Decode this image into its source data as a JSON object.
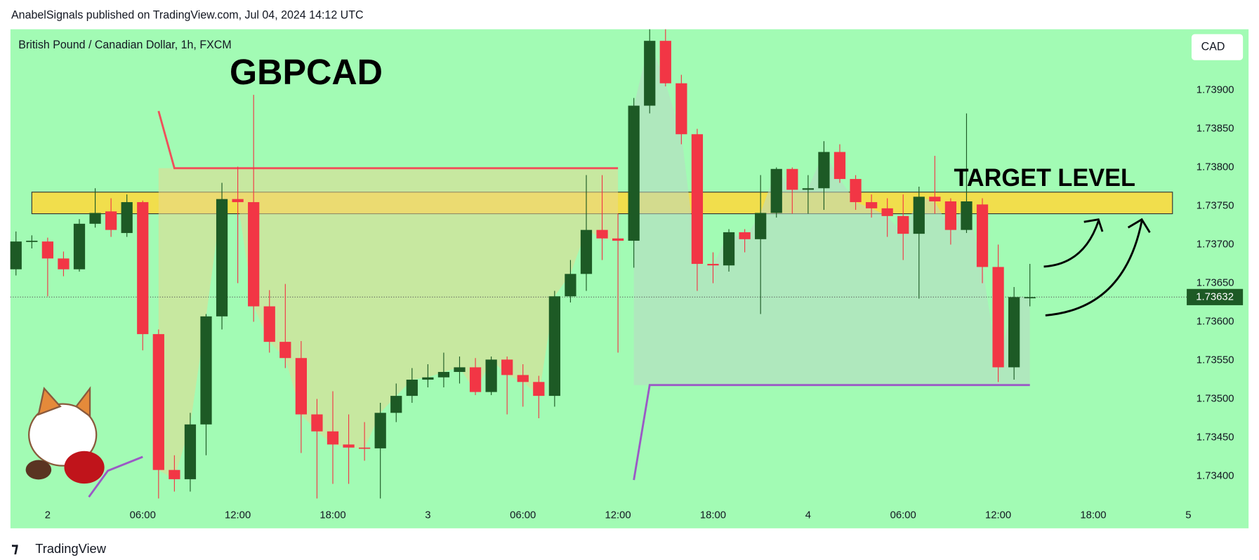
{
  "chart_data": {
    "type": "candlestick",
    "header": "AnabelSignals published on TradingView.com, Jul 04, 2024 14:12 UTC",
    "subtitle": "British Pound / Canadian Dollar, 1h, FXCM",
    "title": "GBPCAD",
    "annotation": "TARGET LEVEL",
    "currency": "CAD",
    "footer": "TradingView",
    "last_price": 1.73632,
    "up_color": "#1d5a25",
    "down_color": "#f23645",
    "ohlc": [
      [
        1.73668,
        1.73717,
        1.7366,
        1.73704
      ],
      [
        1.73704,
        1.73712,
        1.73695,
        1.73705
      ],
      [
        1.73704,
        1.73709,
        1.73633,
        1.73682
      ],
      [
        1.73682,
        1.73691,
        1.73659,
        1.73668
      ],
      [
        1.73668,
        1.73733,
        1.73665,
        1.73727
      ],
      [
        1.73727,
        1.73773,
        1.73722,
        1.73741
      ],
      [
        1.73743,
        1.7376,
        1.7371,
        1.73719
      ],
      [
        1.73715,
        1.73765,
        1.7371,
        1.73755
      ],
      [
        1.73755,
        1.73757,
        1.73563,
        1.73584
      ],
      [
        1.73584,
        1.7359,
        1.73371,
        1.73408
      ],
      [
        1.73408,
        1.73427,
        1.7338,
        1.73396
      ],
      [
        1.73396,
        1.73482,
        1.7338,
        1.73467
      ],
      [
        1.73467,
        1.7361,
        1.73427,
        1.73607
      ],
      [
        1.73607,
        1.7378,
        1.7359,
        1.73759
      ],
      [
        1.73759,
        1.73801,
        1.7365,
        1.73755
      ],
      [
        1.73755,
        1.73894,
        1.736,
        1.7362
      ],
      [
        1.7362,
        1.73641,
        1.7356,
        1.73574
      ],
      [
        1.73574,
        1.73649,
        1.7354,
        1.73553
      ],
      [
        1.73553,
        1.73575,
        1.7343,
        1.7348
      ],
      [
        1.7348,
        1.735,
        1.73371,
        1.73458
      ],
      [
        1.73458,
        1.7351,
        1.7339,
        1.73441
      ],
      [
        1.73441,
        1.7348,
        1.7339,
        1.73437
      ],
      [
        1.73437,
        1.7347,
        1.7342,
        1.73436
      ],
      [
        1.73436,
        1.73495,
        1.73371,
        1.73482
      ],
      [
        1.73482,
        1.7352,
        1.7347,
        1.73504
      ],
      [
        1.73504,
        1.7354,
        1.73495,
        1.73525
      ],
      [
        1.73525,
        1.73545,
        1.73515,
        1.73528
      ],
      [
        1.73528,
        1.7356,
        1.73515,
        1.73535
      ],
      [
        1.73535,
        1.73555,
        1.7352,
        1.73541
      ],
      [
        1.73541,
        1.73553,
        1.73505,
        1.73509
      ],
      [
        1.73509,
        1.73555,
        1.73505,
        1.73551
      ],
      [
        1.73551,
        1.73555,
        1.7348,
        1.73531
      ],
      [
        1.73531,
        1.73545,
        1.7349,
        1.73522
      ],
      [
        1.73522,
        1.7353,
        1.73475,
        1.73504
      ],
      [
        1.73504,
        1.7364,
        1.7349,
        1.73633
      ],
      [
        1.73633,
        1.7368,
        1.73625,
        1.73662
      ],
      [
        1.73662,
        1.7379,
        1.7364,
        1.73719
      ],
      [
        1.73719,
        1.7379,
        1.7368,
        1.73708
      ],
      [
        1.73708,
        1.7374,
        1.7356,
        1.73705
      ],
      [
        1.73705,
        1.7389,
        1.7367,
        1.7388
      ],
      [
        1.7388,
        1.73979,
        1.7387,
        1.73964
      ],
      [
        1.73964,
        1.73979,
        1.73905,
        1.73909
      ],
      [
        1.73909,
        1.7392,
        1.7383,
        1.73843
      ],
      [
        1.73843,
        1.7385,
        1.7364,
        1.73675
      ],
      [
        1.73675,
        1.7369,
        1.7365,
        1.73673
      ],
      [
        1.73673,
        1.7372,
        1.73665,
        1.73716
      ],
      [
        1.73716,
        1.7372,
        1.7369,
        1.73707
      ],
      [
        1.73707,
        1.7379,
        1.7361,
        1.73741
      ],
      [
        1.73741,
        1.738,
        1.73735,
        1.73798
      ],
      [
        1.73798,
        1.738,
        1.7374,
        1.73771
      ],
      [
        1.73771,
        1.7379,
        1.7374,
        1.73773
      ],
      [
        1.73773,
        1.73834,
        1.73745,
        1.7382
      ],
      [
        1.7382,
        1.7383,
        1.7378,
        1.73785
      ],
      [
        1.73785,
        1.7379,
        1.73745,
        1.73755
      ],
      [
        1.73755,
        1.73765,
        1.73735,
        1.73747
      ],
      [
        1.73747,
        1.7376,
        1.7371,
        1.73737
      ],
      [
        1.73737,
        1.73765,
        1.7368,
        1.73714
      ],
      [
        1.73714,
        1.73775,
        1.7363,
        1.73762
      ],
      [
        1.73762,
        1.73815,
        1.7374,
        1.73756
      ],
      [
        1.73756,
        1.7376,
        1.737,
        1.73719
      ],
      [
        1.73719,
        1.7387,
        1.73715,
        1.73756
      ],
      [
        1.73752,
        1.7376,
        1.7365,
        1.73671
      ],
      [
        1.73671,
        1.737,
        1.73522,
        1.73541
      ],
      [
        1.73541,
        1.73645,
        1.73525,
        1.73632
      ],
      [
        1.73632,
        1.73675,
        1.7362,
        1.73632
      ]
    ],
    "zone": {
      "top": 1.73768,
      "bottom": 1.7374,
      "x": [
        1,
        73
      ],
      "color": "#ffd83a"
    },
    "lines": [
      {
        "color": "#f0505a",
        "x": [
          9,
          10,
          38
        ],
        "values": [
          1.73873,
          1.73799,
          1.73799
        ]
      },
      {
        "color": "#9b59c6",
        "x": [
          4.6,
          5.8,
          8
        ],
        "values": [
          1.73373,
          1.73407,
          1.73425
        ]
      },
      {
        "color": "#9b59c6",
        "x": [
          39,
          40,
          64
        ],
        "values": [
          1.73395,
          1.73518,
          1.73518
        ]
      }
    ],
    "xlim": [
      -0.35,
      73.9
    ],
    "xticks": [
      {
        "value": 2,
        "label": "2"
      },
      {
        "value": 8,
        "label": "06:00"
      },
      {
        "value": 14,
        "label": "12:00"
      },
      {
        "value": 20,
        "label": "18:00"
      },
      {
        "value": 26,
        "label": "3"
      },
      {
        "value": 32,
        "label": "06:00"
      },
      {
        "value": 38,
        "label": "12:00"
      },
      {
        "value": 44,
        "label": "18:00"
      },
      {
        "value": 50,
        "label": "4"
      },
      {
        "value": 56,
        "label": "06:00"
      },
      {
        "value": 62,
        "label": "12:00"
      },
      {
        "value": 68,
        "label": "18:00"
      },
      {
        "value": 74,
        "label": "5"
      }
    ],
    "ylim": [
      1.73364,
      1.73979
    ],
    "yticks": [
      {
        "value": 1.734,
        "label": "1.73400"
      },
      {
        "value": 1.7345,
        "label": "1.73450"
      },
      {
        "value": 1.735,
        "label": "1.73500"
      },
      {
        "value": 1.7355,
        "label": "1.73550"
      },
      {
        "value": 1.736,
        "label": "1.73600"
      },
      {
        "value": 1.7365,
        "label": "1.73650"
      },
      {
        "value": 1.737,
        "label": "1.73700"
      },
      {
        "value": 1.7375,
        "label": "1.73750"
      },
      {
        "value": 1.738,
        "label": "1.73800"
      },
      {
        "value": 1.7385,
        "label": "1.73850"
      },
      {
        "value": 1.739,
        "label": "1.73900"
      }
    ]
  }
}
